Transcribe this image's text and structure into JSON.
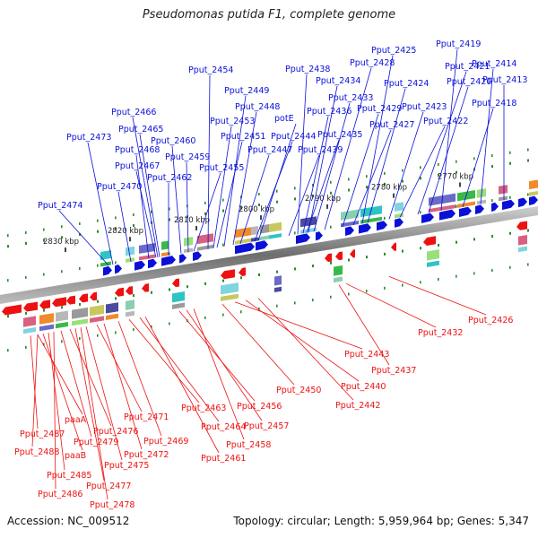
{
  "title": "Pseudomonas putida F1, complete genome",
  "footer": {
    "accession": "Accession: NC_009512",
    "summary": "Topology: circular; Length: 5,959,964 bp; Genes: 5,347"
  },
  "colors": {
    "forward_strand": "#0a10d8",
    "reverse_strand": "#ee1111",
    "backbone": "#7a7a7a",
    "tick_dot": "#2a8a2a"
  },
  "kbp_ticks": [
    "2830 kbp",
    "2820 kbp",
    "2810 kbp",
    "2800 kbp",
    "2790 kbp",
    "2780 kbp",
    "2770 kbp"
  ],
  "forward_genes": [
    "Pput_2474",
    "Pput_2473",
    "Pput_2470",
    "Pput_2468",
    "Pput_2467",
    "Pput_2466",
    "Pput_2465",
    "Pput_2462",
    "Pput_2460",
    "Pput_2459",
    "Pput_2455",
    "Pput_2454",
    "Pput_2453",
    "Pput_2451",
    "Pput_2449",
    "Pput_2448",
    "Pput_2447",
    "Pput_2444",
    "potE",
    "Pput_2439",
    "Pput_2438",
    "Pput_2436",
    "Pput_2435",
    "Pput_2434",
    "Pput_2433",
    "Pput_2429",
    "Pput_2428",
    "Pput_2427",
    "Pput_2425",
    "Pput_2424",
    "Pput_2423",
    "Pput_2422",
    "Pput_2421",
    "Pput_2420",
    "Pput_2419",
    "Pput_2418",
    "Pput_2414",
    "Pput_2413"
  ],
  "reverse_genes": [
    "Pput_2487",
    "paaA",
    "Pput_2488",
    "paaB",
    "Pput_2485",
    "Pput_2486",
    "Pput_2479",
    "Pput_2476",
    "Pput_2477",
    "Pput_2478",
    "Pput_2475",
    "Pput_2471",
    "Pput_2472",
    "Pput_2469",
    "Pput_2463",
    "Pput_2464",
    "Pput_2461",
    "Pput_2456",
    "Pput_2457",
    "Pput_2458",
    "Pput_2450",
    "Pput_2443",
    "Pput_2440",
    "Pput_2442",
    "Pput_2437",
    "Pput_2432",
    "Pput_2426"
  ]
}
